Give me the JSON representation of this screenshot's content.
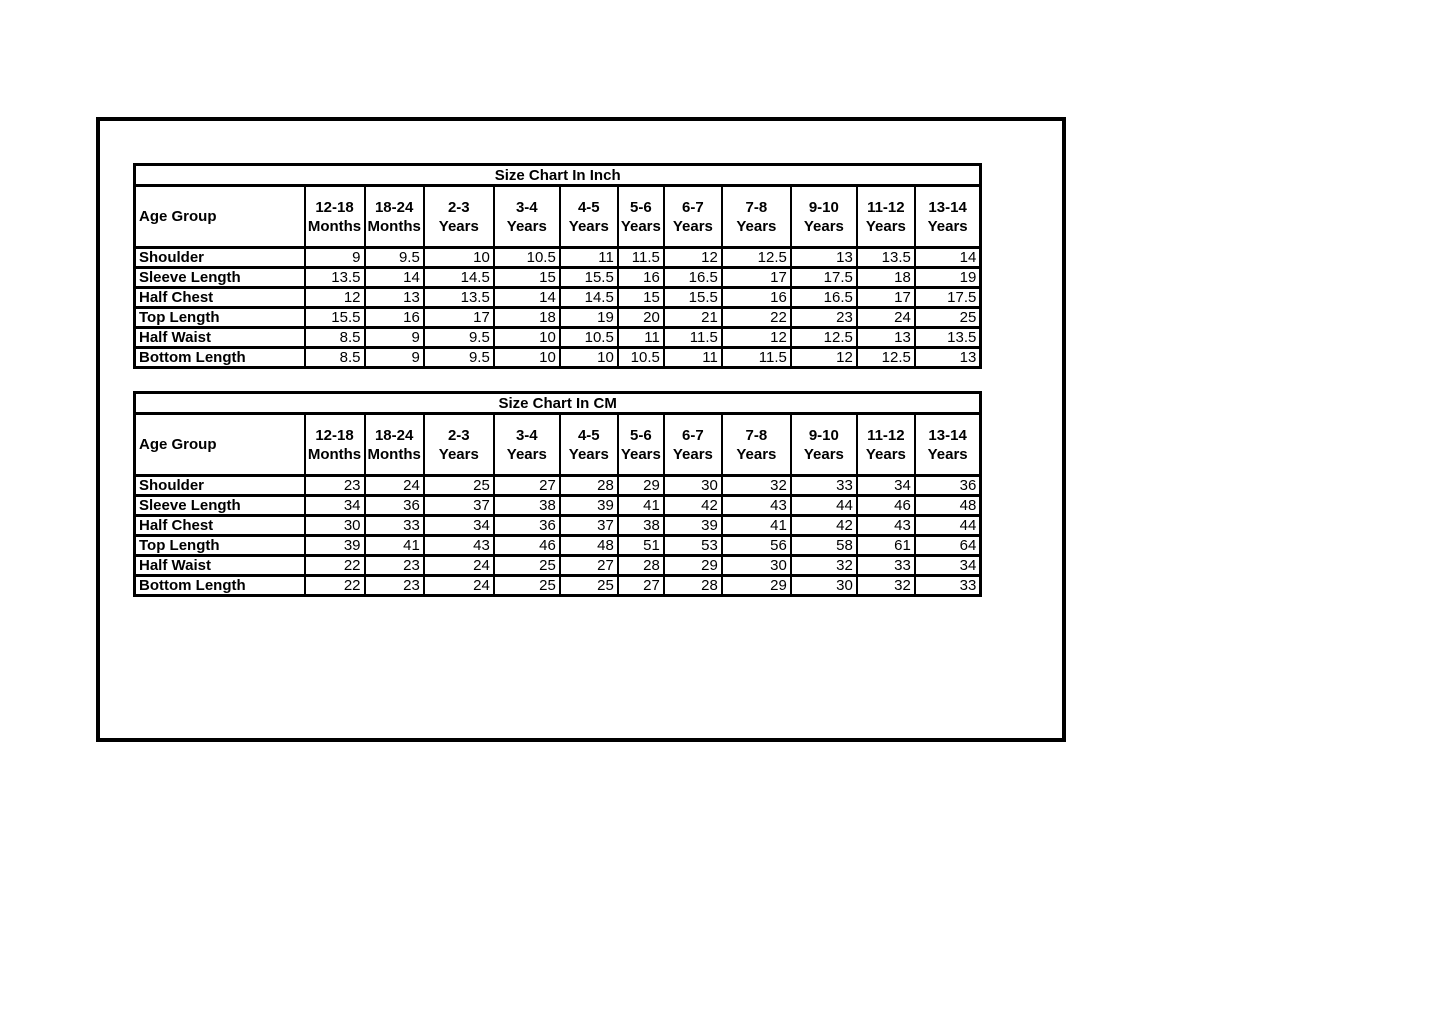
{
  "page": {
    "background_color": "#ffffff",
    "frame_border_color": "#000000",
    "table_border_color": "#000000",
    "text_color": "#000000"
  },
  "tables": [
    {
      "title": "Size Chart In Inch",
      "corner_header": "Age Group",
      "columns": [
        "12-18 Months",
        "18-24 Months",
        "2-3 Years",
        "3-4 Years",
        "4-5 Years",
        "5-6 Years",
        "6-7 Years",
        "7-8 Years",
        "9-10 Years",
        "11-12 Years",
        "13-14 Years"
      ],
      "rows": [
        {
          "label": "Shoulder",
          "values": [
            "9",
            "9.5",
            "10",
            "10.5",
            "11",
            "11.5",
            "12",
            "12.5",
            "13",
            "13.5",
            "14"
          ]
        },
        {
          "label": "Sleeve Length",
          "values": [
            "13.5",
            "14",
            "14.5",
            "15",
            "15.5",
            "16",
            "16.5",
            "17",
            "17.5",
            "18",
            "19"
          ]
        },
        {
          "label": "Half Chest",
          "values": [
            "12",
            "13",
            "13.5",
            "14",
            "14.5",
            "15",
            "15.5",
            "16",
            "16.5",
            "17",
            "17.5"
          ]
        },
        {
          "label": "Top Length",
          "values": [
            "15.5",
            "16",
            "17",
            "18",
            "19",
            "20",
            "21",
            "22",
            "23",
            "24",
            "25"
          ]
        },
        {
          "label": "Half Waist",
          "values": [
            "8.5",
            "9",
            "9.5",
            "10",
            "10.5",
            "11",
            "11.5",
            "12",
            "12.5",
            "13",
            "13.5"
          ]
        },
        {
          "label": "Bottom Length",
          "values": [
            "8.5",
            "9",
            "9.5",
            "10",
            "10",
            "10.5",
            "11",
            "11.5",
            "12",
            "12.5",
            "13"
          ]
        }
      ]
    },
    {
      "title": "Size Chart In CM",
      "corner_header": "Age Group",
      "columns": [
        "12-18 Months",
        "18-24 Months",
        "2-3 Years",
        "3-4 Years",
        "4-5 Years",
        "5-6 Years",
        "6-7 Years",
        "7-8 Years",
        "9-10 Years",
        "11-12 Years",
        "13-14 Years"
      ],
      "rows": [
        {
          "label": "Shoulder",
          "values": [
            "23",
            "24",
            "25",
            "27",
            "28",
            "29",
            "30",
            "32",
            "33",
            "34",
            "36"
          ]
        },
        {
          "label": "Sleeve Length",
          "values": [
            "34",
            "36",
            "37",
            "38",
            "39",
            "41",
            "42",
            "43",
            "44",
            "46",
            "48"
          ]
        },
        {
          "label": "Half Chest",
          "values": [
            "30",
            "33",
            "34",
            "36",
            "37",
            "38",
            "39",
            "41",
            "42",
            "43",
            "44"
          ]
        },
        {
          "label": "Top Length",
          "values": [
            "39",
            "41",
            "43",
            "46",
            "48",
            "51",
            "53",
            "56",
            "58",
            "61",
            "64"
          ]
        },
        {
          "label": "Half Waist",
          "values": [
            "22",
            "23",
            "24",
            "25",
            "27",
            "28",
            "29",
            "30",
            "32",
            "33",
            "34"
          ]
        },
        {
          "label": "Bottom Length",
          "values": [
            "22",
            "23",
            "24",
            "25",
            "25",
            "27",
            "28",
            "29",
            "30",
            "32",
            "33"
          ]
        }
      ]
    }
  ]
}
